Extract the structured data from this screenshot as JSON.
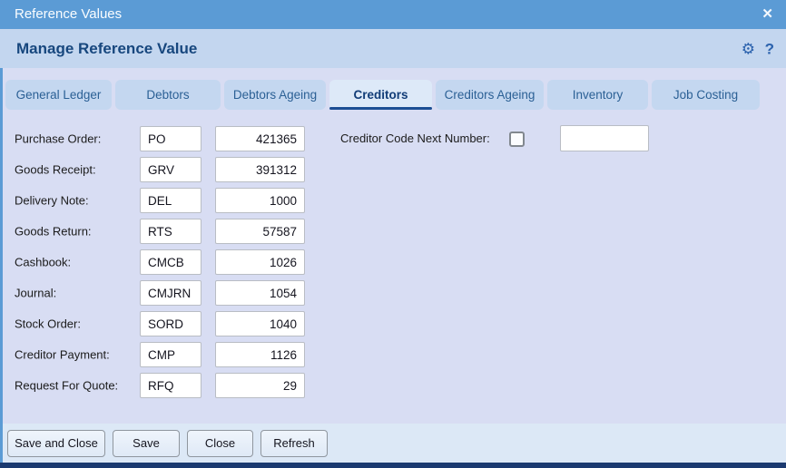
{
  "window": {
    "title": "Reference Values"
  },
  "icons": {
    "close": "✕",
    "settings": "⚙",
    "help": "?"
  },
  "header": {
    "title": "Manage Reference Value"
  },
  "tabs": [
    {
      "label": "General Ledger"
    },
    {
      "label": "Debtors"
    },
    {
      "label": "Debtors Ageing"
    },
    {
      "label": "Creditors",
      "active": true
    },
    {
      "label": "Creditors Ageing"
    },
    {
      "label": "Inventory"
    },
    {
      "label": "Job Costing"
    }
  ],
  "form": {
    "rows": [
      {
        "label": "Purchase Order:",
        "prefix": "PO",
        "number": "421365"
      },
      {
        "label": "Goods Receipt:",
        "prefix": "GRV",
        "number": "391312"
      },
      {
        "label": "Delivery Note:",
        "prefix": "DEL",
        "number": "1000"
      },
      {
        "label": "Goods Return:",
        "prefix": "RTS",
        "number": "57587"
      },
      {
        "label": "Cashbook:",
        "prefix": "CMCB",
        "number": "1026"
      },
      {
        "label": "Journal:",
        "prefix": "CMJRN",
        "number": "1054"
      },
      {
        "label": "Stock Order:",
        "prefix": "SORD",
        "number": "1040"
      },
      {
        "label": "Creditor Payment:",
        "prefix": "CMP",
        "number": "1126"
      },
      {
        "label": "Request For Quote:",
        "prefix": "RFQ",
        "number": "29"
      }
    ],
    "creditor_code": {
      "label": "Creditor Code Next Number:",
      "checked": false,
      "value": ""
    }
  },
  "footer": {
    "buttons": [
      "Save and Close",
      "Save",
      "Close",
      "Refresh"
    ]
  },
  "colors": {
    "titlebar": "#5b9bd5",
    "header_bg": "#c3d6ef",
    "panel_bg": "#d8ddf3",
    "tab_bg": "#c4d7f0",
    "tab_active_bg": "#dde9f8",
    "accent_dark_blue": "#1c4e94",
    "footer_bg": "#dce8f6",
    "bottom_strip": "#1b3a70"
  }
}
